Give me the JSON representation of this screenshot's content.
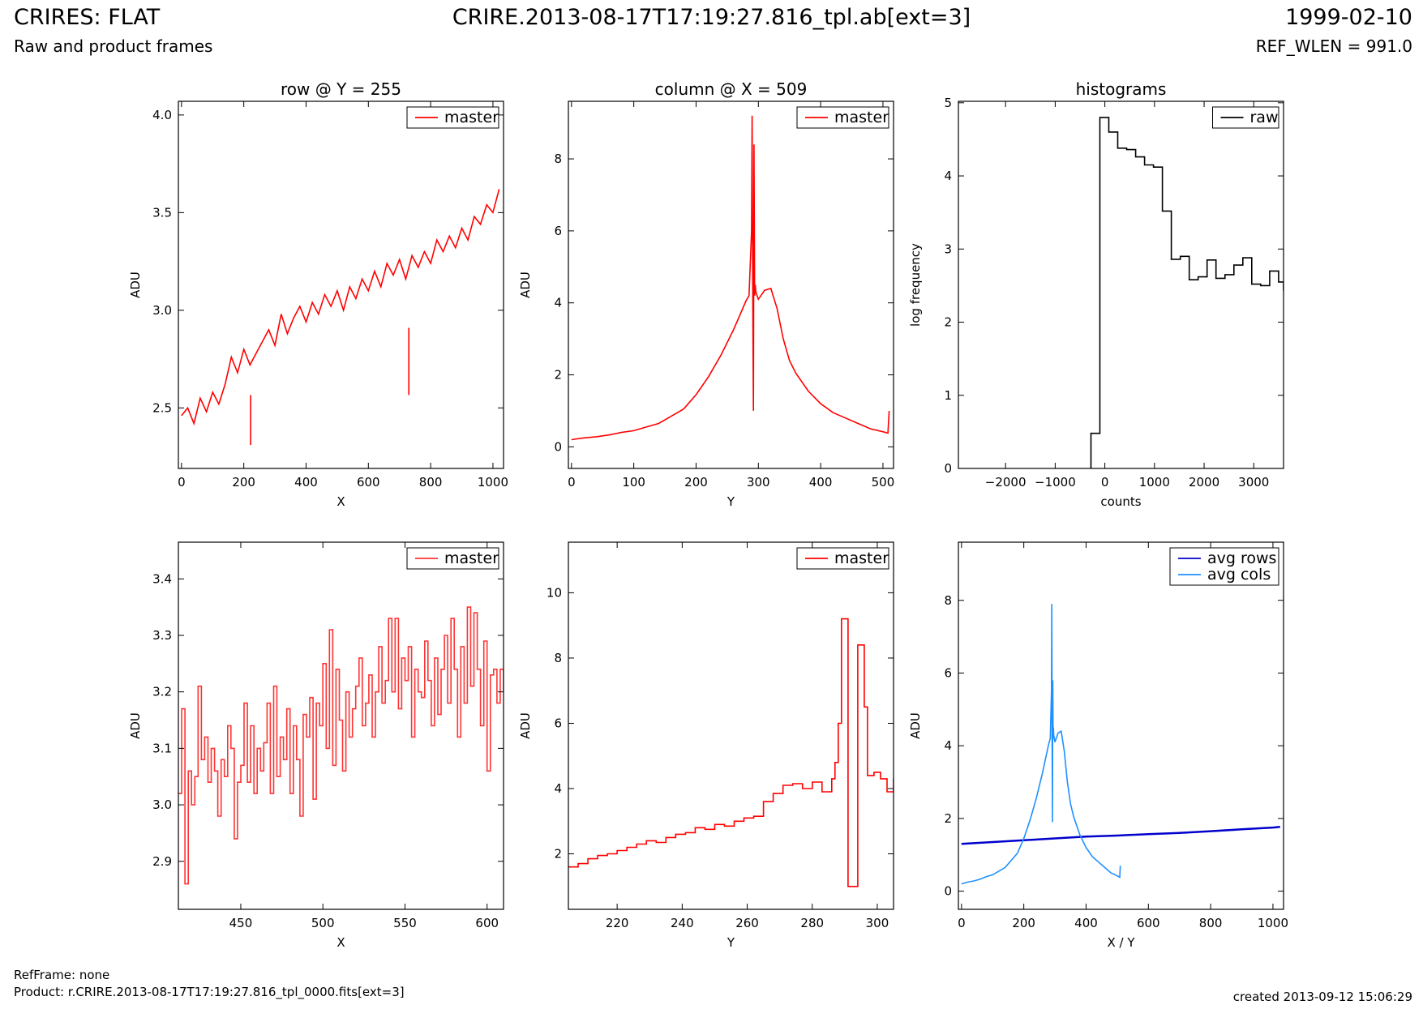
{
  "header": {
    "title": "CRIRES: FLAT",
    "subtitle": "Raw and product frames",
    "file": "CRIRE.2013-08-17T17:19:27.816_tpl.ab[ext=3]",
    "date": "1999-02-10",
    "ref_wlen": "REF_WLEN = 991.0"
  },
  "footer": {
    "ref_frame": "RefFrame: none",
    "product": "Product: r.CRIRE.2013-08-17T17:19:27.816_tpl_0000.fits[ext=3]",
    "created": "created 2013-09-12 15:06:29"
  },
  "chart_data": [
    {
      "type": "line",
      "title": "row @ Y = 255",
      "xlabel": "X",
      "ylabel": "ADU",
      "xlim": [
        -10,
        1034
      ],
      "ylim": [
        2.19,
        4.07
      ],
      "xticks": [
        0,
        200,
        400,
        600,
        800,
        1000
      ],
      "yticks": [
        2.5,
        3.0,
        3.5,
        4.0
      ],
      "ytick_labels": [
        "2.5",
        "3.0",
        "3.5",
        "4.0"
      ],
      "legend": "top-right",
      "series": [
        {
          "name": "master",
          "color": "#ff0000",
          "x": [
            0,
            20,
            40,
            60,
            80,
            100,
            120,
            140,
            160,
            180,
            200,
            220,
            240,
            260,
            280,
            300,
            320,
            340,
            360,
            380,
            400,
            420,
            440,
            460,
            480,
            500,
            520,
            540,
            560,
            580,
            600,
            620,
            640,
            660,
            680,
            700,
            720,
            740,
            760,
            780,
            800,
            820,
            840,
            860,
            880,
            900,
            920,
            940,
            960,
            980,
            1000,
            1020
          ],
          "y": [
            2.46,
            2.5,
            2.42,
            2.55,
            2.48,
            2.58,
            2.52,
            2.62,
            2.76,
            2.68,
            2.8,
            2.72,
            2.78,
            2.84,
            2.9,
            2.82,
            2.98,
            2.88,
            2.96,
            3.02,
            2.94,
            3.04,
            2.98,
            3.08,
            3.02,
            3.1,
            3.0,
            3.12,
            3.06,
            3.16,
            3.1,
            3.2,
            3.12,
            3.24,
            3.18,
            3.26,
            3.16,
            3.28,
            3.22,
            3.3,
            3.24,
            3.36,
            3.3,
            3.38,
            3.32,
            3.42,
            3.36,
            3.48,
            3.44,
            3.54,
            3.5,
            3.62
          ]
        }
      ],
      "spikes": [
        {
          "x": 222,
          "y": 2.31
        },
        {
          "x": 730,
          "y": 2.91
        }
      ]
    },
    {
      "type": "line",
      "title": "column @ X = 509",
      "xlabel": "Y",
      "ylabel": "ADU",
      "xlim": [
        -5,
        517
      ],
      "ylim": [
        -0.6,
        9.6
      ],
      "xticks": [
        0,
        100,
        200,
        300,
        400,
        500
      ],
      "yticks": [
        0,
        2,
        4,
        6,
        8
      ],
      "legend": "top-right",
      "series": [
        {
          "name": "master",
          "color": "#ff0000",
          "x": [
            0,
            20,
            40,
            60,
            80,
            100,
            120,
            140,
            160,
            180,
            200,
            220,
            240,
            260,
            270,
            280,
            285,
            289,
            290,
            291,
            292,
            293,
            294,
            295,
            296,
            300,
            310,
            320,
            330,
            340,
            350,
            360,
            380,
            400,
            420,
            440,
            460,
            480,
            500,
            508,
            510
          ],
          "y": [
            0.2,
            0.25,
            0.28,
            0.33,
            0.4,
            0.45,
            0.55,
            0.65,
            0.85,
            1.05,
            1.45,
            1.95,
            2.55,
            3.25,
            3.65,
            4.05,
            4.2,
            6.0,
            9.2,
            4.1,
            1.0,
            8.4,
            4.2,
            4.5,
            4.3,
            4.1,
            4.35,
            4.4,
            3.85,
            3.0,
            2.4,
            2.05,
            1.55,
            1.2,
            0.95,
            0.8,
            0.65,
            0.5,
            0.42,
            0.38,
            1.0
          ]
        }
      ]
    },
    {
      "type": "line",
      "title": "histograms",
      "xlabel": "counts",
      "ylabel": "log frequency",
      "xlim": [
        -2950,
        3600
      ],
      "ylim": [
        0,
        5.02
      ],
      "xticks": [
        -2000,
        -1000,
        0,
        1000,
        2000,
        3000
      ],
      "xtick_labels": [
        "−2000",
        "−1000",
        "0",
        "1000",
        "2000",
        "3000"
      ],
      "yticks": [
        0,
        1,
        2,
        3,
        4,
        5
      ],
      "legend": "top-right",
      "series": [
        {
          "name": "raw",
          "color": "#000000",
          "step_edges": [
            -280,
            -100,
            80,
            260,
            440,
            620,
            800,
            980,
            1160,
            1340,
            1520,
            1700,
            1880,
            2060,
            2240,
            2420,
            2600,
            2780,
            2960,
            3140,
            3320,
            3500,
            3600
          ],
          "step_values": [
            0.48,
            4.8,
            4.6,
            4.38,
            4.36,
            4.26,
            4.15,
            4.12,
            3.52,
            2.86,
            2.9,
            2.58,
            2.62,
            2.85,
            2.6,
            2.65,
            2.78,
            2.88,
            2.52,
            2.5,
            2.7,
            2.55,
            2.43
          ]
        }
      ]
    },
    {
      "type": "line",
      "xlabel": "X",
      "ylabel": "ADU",
      "xlim": [
        412,
        610
      ],
      "ylim": [
        2.815,
        3.465
      ],
      "xticks": [
        450,
        500,
        550,
        600
      ],
      "yticks": [
        2.9,
        3.0,
        3.1,
        3.2,
        3.3,
        3.4
      ],
      "ytick_labels": [
        "2.9",
        "3.0",
        "3.1",
        "3.2",
        "3.3",
        "3.4"
      ],
      "legend": "top-right",
      "series": [
        {
          "name": "master",
          "color": "#ff3333",
          "x": [
            412,
            414,
            416,
            418,
            420,
            422,
            424,
            426,
            428,
            430,
            432,
            434,
            436,
            438,
            440,
            442,
            444,
            446,
            448,
            450,
            452,
            454,
            456,
            458,
            460,
            462,
            464,
            466,
            468,
            470,
            472,
            474,
            476,
            478,
            480,
            482,
            484,
            486,
            488,
            490,
            492,
            494,
            496,
            498,
            500,
            502,
            504,
            506,
            508,
            510,
            512,
            514,
            516,
            518,
            520,
            522,
            524,
            526,
            528,
            530,
            532,
            534,
            536,
            538,
            540,
            542,
            544,
            546,
            548,
            550,
            552,
            554,
            556,
            558,
            560,
            562,
            564,
            566,
            568,
            570,
            572,
            574,
            576,
            578,
            580,
            582,
            584,
            586,
            588,
            590,
            592,
            594,
            596,
            598,
            600,
            602,
            604,
            606,
            608,
            610
          ],
          "y": [
            3.02,
            3.17,
            2.86,
            3.06,
            3.0,
            3.05,
            3.21,
            3.08,
            3.12,
            3.04,
            3.1,
            3.06,
            2.98,
            3.08,
            3.05,
            3.14,
            3.1,
            2.94,
            3.04,
            3.07,
            3.18,
            3.04,
            3.14,
            3.02,
            3.1,
            3.06,
            3.11,
            3.18,
            3.02,
            3.21,
            3.05,
            3.12,
            3.08,
            3.17,
            3.02,
            3.14,
            3.08,
            2.98,
            3.16,
            3.12,
            3.19,
            3.01,
            3.18,
            3.14,
            3.25,
            3.1,
            3.31,
            3.07,
            3.24,
            3.15,
            3.06,
            3.2,
            3.12,
            3.17,
            3.21,
            3.26,
            3.14,
            3.18,
            3.23,
            3.12,
            3.2,
            3.28,
            3.18,
            3.22,
            3.33,
            3.2,
            3.33,
            3.17,
            3.26,
            3.22,
            3.28,
            3.12,
            3.24,
            3.2,
            3.19,
            3.29,
            3.22,
            3.14,
            3.26,
            3.16,
            3.24,
            3.3,
            3.18,
            3.33,
            3.24,
            3.12,
            3.28,
            3.18,
            3.35,
            3.21,
            3.34,
            3.24,
            3.14,
            3.29,
            3.06,
            3.23,
            3.24,
            3.18,
            3.24,
            3.2
          ]
        }
      ]
    },
    {
      "type": "line",
      "xlabel": "Y",
      "ylabel": "ADU",
      "xlim": [
        205,
        305
      ],
      "ylim": [
        0.3,
        11.55
      ],
      "xticks": [
        220,
        240,
        260,
        280,
        300
      ],
      "yticks": [
        2,
        4,
        6,
        8,
        10
      ],
      "legend": "top-right",
      "series": [
        {
          "name": "master",
          "color": "#ff0000",
          "x": [
            205,
            208,
            211,
            214,
            217,
            220,
            223,
            226,
            229,
            232,
            235,
            238,
            241,
            244,
            247,
            250,
            253,
            256,
            259,
            262,
            265,
            268,
            271,
            274,
            277,
            280,
            283,
            286,
            287,
            288,
            289,
            290,
            291,
            292,
            293,
            294,
            295,
            296,
            297,
            299,
            301,
            303,
            305
          ],
          "y": [
            1.6,
            1.7,
            1.85,
            1.95,
            2.0,
            2.1,
            2.2,
            2.3,
            2.4,
            2.35,
            2.5,
            2.6,
            2.65,
            2.8,
            2.75,
            2.9,
            2.85,
            3.0,
            3.1,
            3.15,
            3.6,
            3.85,
            4.1,
            4.15,
            4.0,
            4.2,
            3.9,
            4.3,
            4.8,
            6.0,
            9.2,
            9.2,
            1.0,
            1.0,
            1.0,
            8.4,
            8.4,
            6.5,
            4.4,
            4.5,
            4.3,
            3.9,
            4.3
          ]
        }
      ]
    },
    {
      "type": "line",
      "xlabel": "X / Y",
      "ylabel": "ADU",
      "xlim": [
        -10,
        1034
      ],
      "ylim": [
        -0.5,
        9.6
      ],
      "xticks": [
        0,
        200,
        400,
        600,
        800,
        1000
      ],
      "yticks": [
        0,
        2,
        4,
        6,
        8
      ],
      "legend": "top-right",
      "series": [
        {
          "name": "avg rows",
          "color": "#0000cc",
          "x": [
            0,
            100,
            200,
            300,
            400,
            500,
            600,
            700,
            800,
            900,
            1000,
            1023
          ],
          "y": [
            1.3,
            1.35,
            1.4,
            1.45,
            1.5,
            1.53,
            1.57,
            1.6,
            1.65,
            1.7,
            1.75,
            1.77
          ]
        },
        {
          "name": "avg cols",
          "color": "#1e90ff",
          "x": [
            0,
            20,
            40,
            60,
            80,
            100,
            120,
            140,
            160,
            180,
            200,
            220,
            240,
            260,
            270,
            280,
            285,
            289,
            290,
            291,
            292,
            293,
            294,
            295,
            296,
            300,
            310,
            320,
            330,
            340,
            350,
            360,
            380,
            400,
            420,
            440,
            460,
            480,
            500,
            508,
            510
          ],
          "y": [
            0.2,
            0.25,
            0.28,
            0.33,
            0.4,
            0.45,
            0.55,
            0.65,
            0.85,
            1.05,
            1.45,
            1.95,
            2.55,
            3.25,
            3.65,
            4.05,
            4.2,
            5.5,
            7.9,
            4.1,
            1.9,
            5.8,
            4.2,
            4.5,
            4.3,
            4.1,
            4.35,
            4.4,
            3.85,
            3.0,
            2.4,
            2.05,
            1.55,
            1.2,
            0.95,
            0.8,
            0.65,
            0.5,
            0.42,
            0.38,
            0.7
          ]
        }
      ]
    }
  ]
}
